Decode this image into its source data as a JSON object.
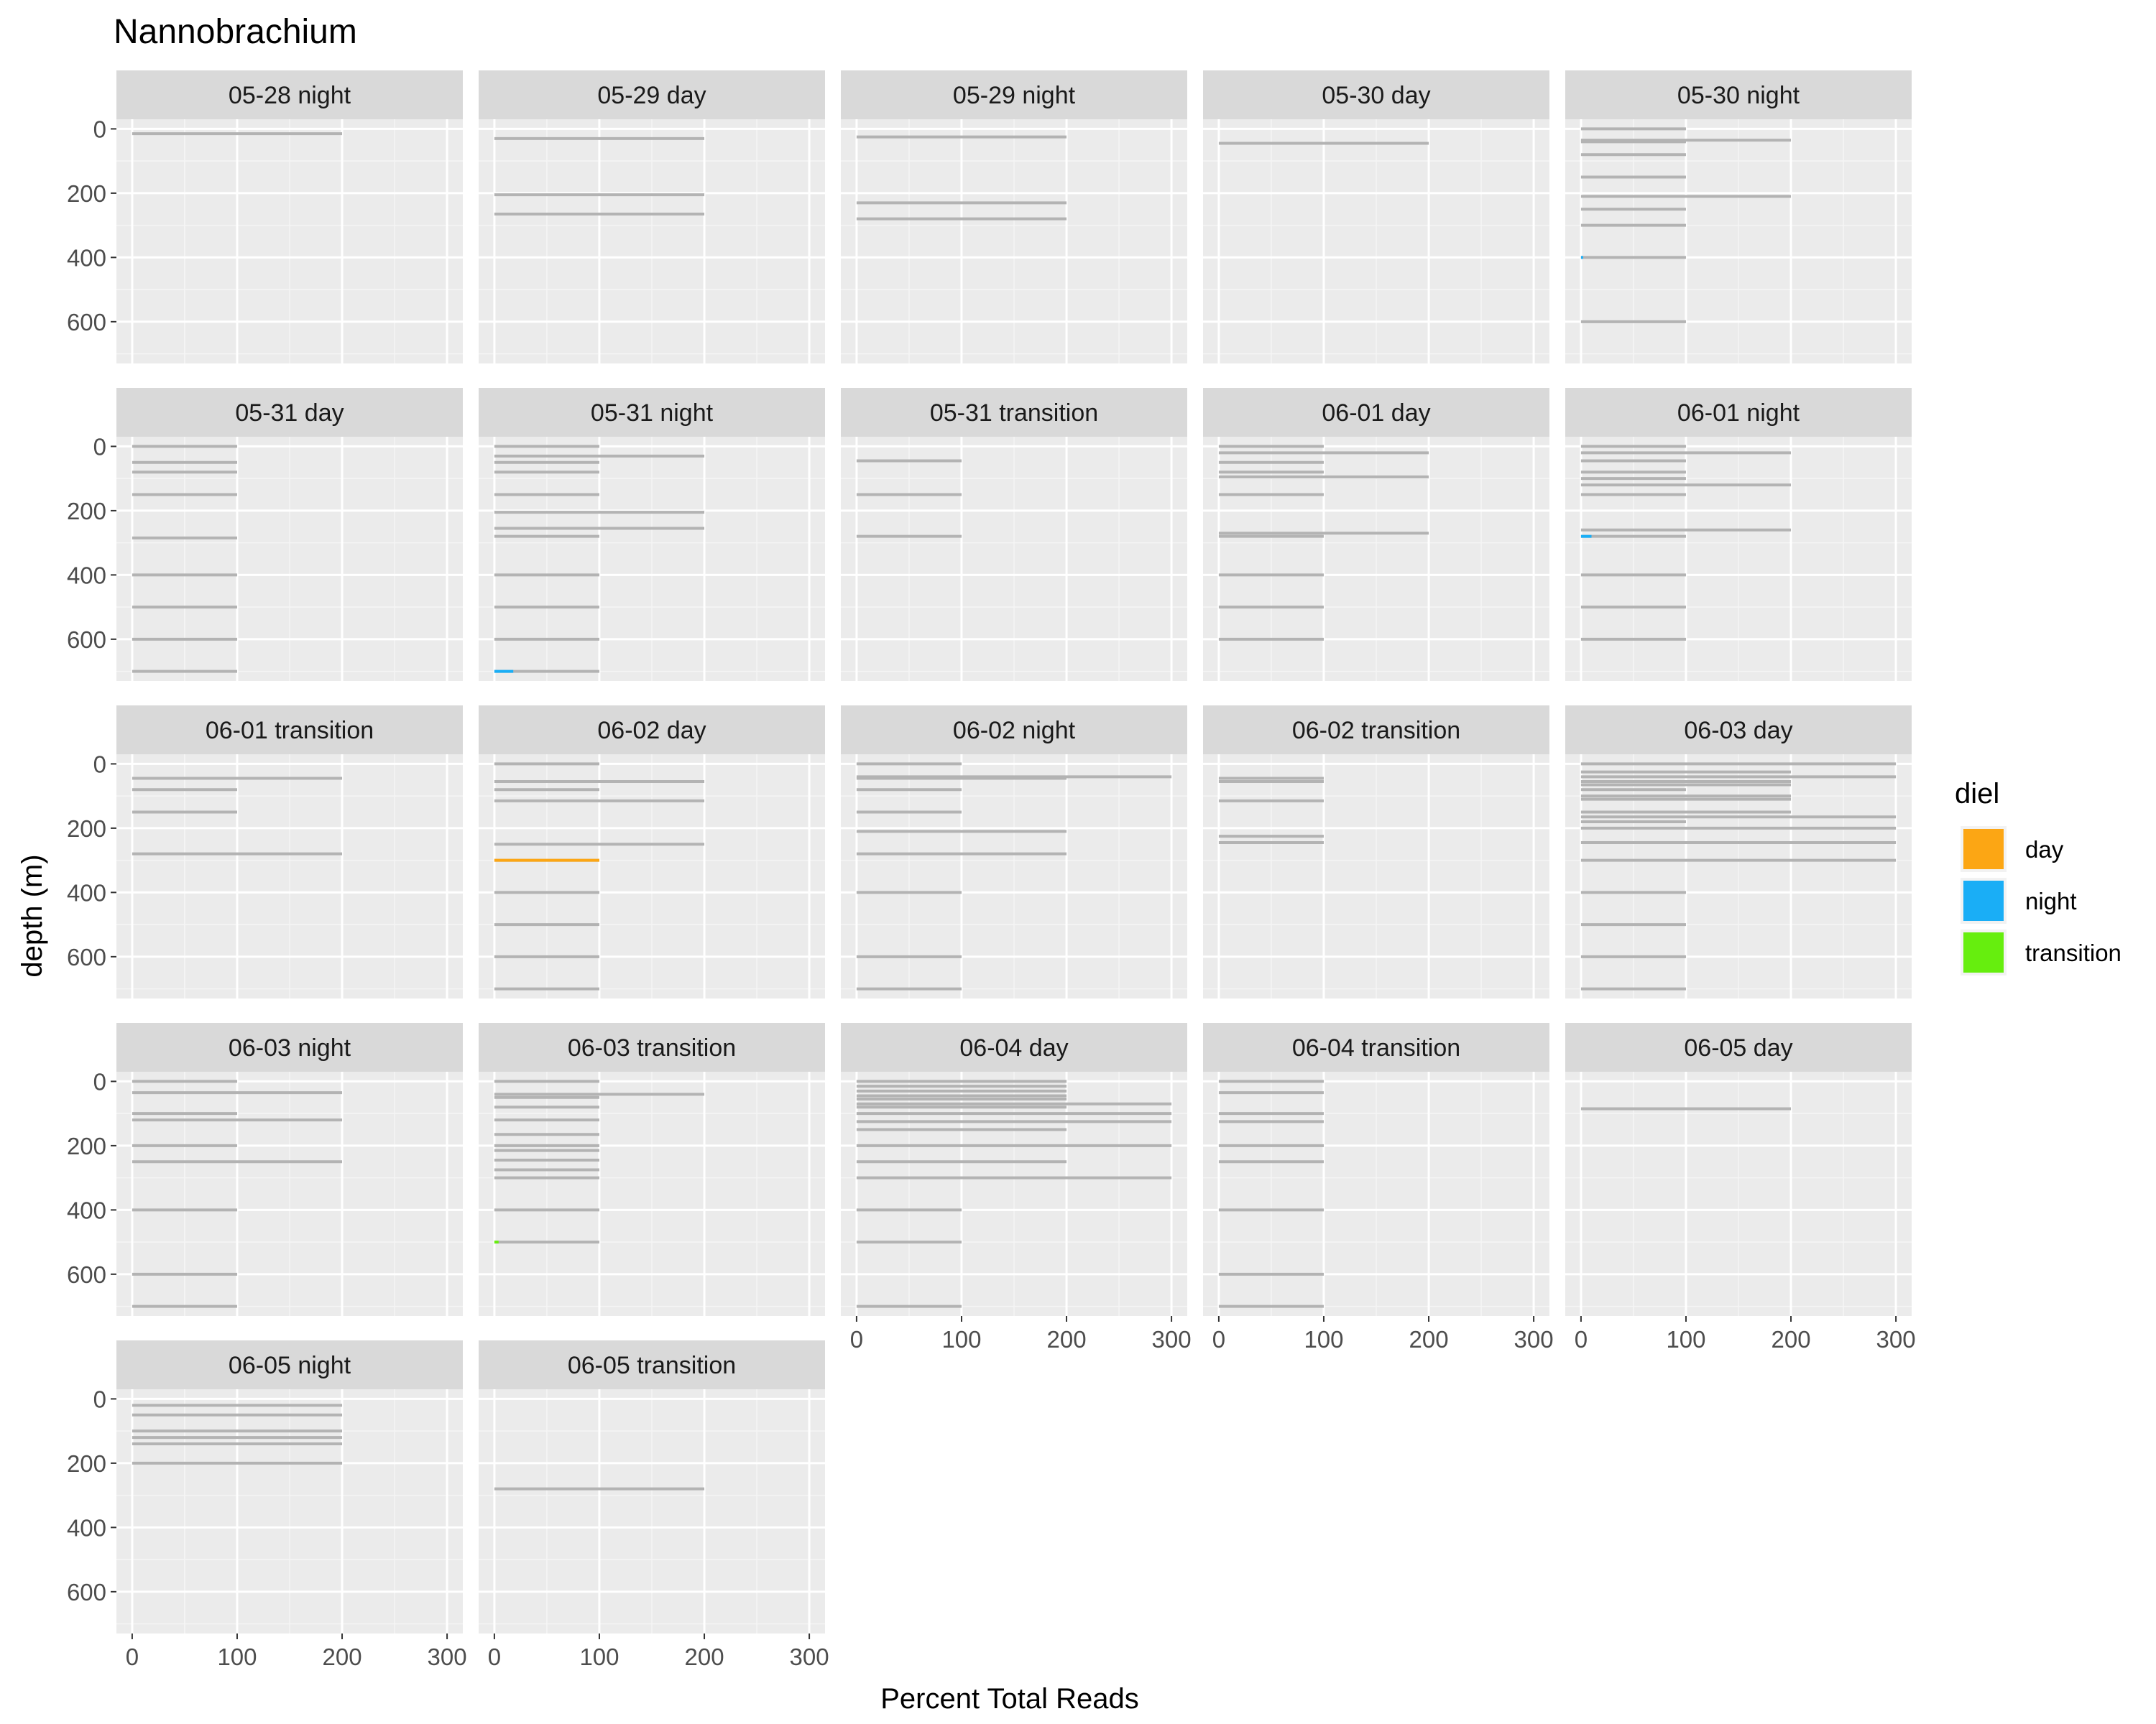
{
  "chart_data": {
    "type": "bar",
    "title": "Nannobrachium",
    "xlabel": "Percent Total Reads",
    "ylabel": "depth (m)",
    "xlim": [
      -15,
      315
    ],
    "ylim": [
      -30,
      730
    ],
    "x_ticks": [
      "0",
      "100",
      "200",
      "300"
    ],
    "y_ticks": [
      "0",
      "200",
      "400",
      "600"
    ],
    "legend": {
      "title": "diel",
      "position": "right",
      "entries": [
        {
          "label": "day",
          "color": "#FCA614"
        },
        {
          "label": "night",
          "color": "#1AAEF6"
        },
        {
          "label": "transition",
          "color": "#66EE0E"
        }
      ]
    },
    "bar_note": "Each horizontal line is a sample at a depth; total extent is 100% per sample; colored segment is the fraction of reads for Nannobrachium.",
    "background_bar_color": "#B3B3B3",
    "panels": [
      {
        "label": "05-28 night",
        "bars": [
          {
            "depth": 15,
            "total": 200
          }
        ]
      },
      {
        "label": "05-29 day",
        "bars": [
          {
            "depth": 30,
            "total": 200
          },
          {
            "depth": 205,
            "total": 200
          },
          {
            "depth": 265,
            "total": 200
          }
        ]
      },
      {
        "label": "05-29 night",
        "bars": [
          {
            "depth": 25,
            "total": 200
          },
          {
            "depth": 230,
            "total": 200
          },
          {
            "depth": 280,
            "total": 200
          }
        ]
      },
      {
        "label": "05-30 day",
        "bars": [
          {
            "depth": 45,
            "total": 200
          }
        ]
      },
      {
        "label": "05-30 night",
        "bars": [
          {
            "depth": 0,
            "total": 100
          },
          {
            "depth": 35,
            "total": 200
          },
          {
            "depth": 40,
            "total": 100
          },
          {
            "depth": 80,
            "total": 100
          },
          {
            "depth": 150,
            "total": 100
          },
          {
            "depth": 210,
            "total": 200
          },
          {
            "depth": 250,
            "total": 100
          },
          {
            "depth": 300,
            "total": 100
          },
          {
            "depth": 400,
            "total": 100,
            "value": 2,
            "color": "night"
          },
          {
            "depth": 600,
            "total": 100
          }
        ]
      },
      {
        "label": "05-31 day",
        "bars": [
          {
            "depth": 0,
            "total": 100
          },
          {
            "depth": 50,
            "total": 100
          },
          {
            "depth": 80,
            "total": 100
          },
          {
            "depth": 150,
            "total": 100
          },
          {
            "depth": 285,
            "total": 100
          },
          {
            "depth": 400,
            "total": 100
          },
          {
            "depth": 500,
            "total": 100
          },
          {
            "depth": 600,
            "total": 100
          },
          {
            "depth": 700,
            "total": 100
          }
        ]
      },
      {
        "label": "05-31 night",
        "bars": [
          {
            "depth": 0,
            "total": 100
          },
          {
            "depth": 30,
            "total": 200
          },
          {
            "depth": 50,
            "total": 100
          },
          {
            "depth": 80,
            "total": 100
          },
          {
            "depth": 150,
            "total": 100
          },
          {
            "depth": 205,
            "total": 200
          },
          {
            "depth": 255,
            "total": 200
          },
          {
            "depth": 280,
            "total": 100
          },
          {
            "depth": 400,
            "total": 100
          },
          {
            "depth": 500,
            "total": 100
          },
          {
            "depth": 600,
            "total": 100
          },
          {
            "depth": 700,
            "total": 100,
            "value": 18,
            "color": "night"
          }
        ]
      },
      {
        "label": "05-31 transition",
        "bars": [
          {
            "depth": 45,
            "total": 100
          },
          {
            "depth": 150,
            "total": 100
          },
          {
            "depth": 280,
            "total": 100
          }
        ]
      },
      {
        "label": "06-01 day",
        "bars": [
          {
            "depth": 0,
            "total": 100
          },
          {
            "depth": 20,
            "total": 200
          },
          {
            "depth": 50,
            "total": 100
          },
          {
            "depth": 95,
            "total": 200
          },
          {
            "depth": 80,
            "total": 100
          },
          {
            "depth": 150,
            "total": 100
          },
          {
            "depth": 270,
            "total": 200
          },
          {
            "depth": 280,
            "total": 100
          },
          {
            "depth": 400,
            "total": 100
          },
          {
            "depth": 500,
            "total": 100
          },
          {
            "depth": 600,
            "total": 100
          }
        ]
      },
      {
        "label": "06-01 night",
        "bars": [
          {
            "depth": 0,
            "total": 100
          },
          {
            "depth": 20,
            "total": 200
          },
          {
            "depth": 45,
            "total": 100
          },
          {
            "depth": 80,
            "total": 100
          },
          {
            "depth": 100,
            "total": 100
          },
          {
            "depth": 120,
            "total": 200
          },
          {
            "depth": 150,
            "total": 100
          },
          {
            "depth": 260,
            "total": 200
          },
          {
            "depth": 280,
            "total": 100,
            "value": 10,
            "color": "night"
          },
          {
            "depth": 400,
            "total": 100
          },
          {
            "depth": 500,
            "total": 100
          },
          {
            "depth": 600,
            "total": 100
          }
        ]
      },
      {
        "label": "06-01 transition",
        "bars": [
          {
            "depth": 45,
            "total": 200
          },
          {
            "depth": 80,
            "total": 100
          },
          {
            "depth": 150,
            "total": 100
          },
          {
            "depth": 280,
            "total": 200
          }
        ]
      },
      {
        "label": "06-02 day",
        "bars": [
          {
            "depth": 0,
            "total": 100
          },
          {
            "depth": 55,
            "total": 200
          },
          {
            "depth": 80,
            "total": 100
          },
          {
            "depth": 115,
            "total": 200
          },
          {
            "depth": 250,
            "total": 200
          },
          {
            "depth": 300,
            "total": 100,
            "value": 100,
            "color": "day"
          },
          {
            "depth": 400,
            "total": 100
          },
          {
            "depth": 500,
            "total": 100
          },
          {
            "depth": 600,
            "total": 100
          },
          {
            "depth": 700,
            "total": 100
          }
        ]
      },
      {
        "label": "06-02 night",
        "bars": [
          {
            "depth": 0,
            "total": 100
          },
          {
            "depth": 40,
            "total": 300
          },
          {
            "depth": 45,
            "total": 200
          },
          {
            "depth": 80,
            "total": 100
          },
          {
            "depth": 150,
            "total": 100
          },
          {
            "depth": 210,
            "total": 200
          },
          {
            "depth": 280,
            "total": 200
          },
          {
            "depth": 400,
            "total": 100
          },
          {
            "depth": 600,
            "total": 100
          },
          {
            "depth": 700,
            "total": 100
          }
        ]
      },
      {
        "label": "06-02 transition",
        "bars": [
          {
            "depth": 45,
            "total": 100
          },
          {
            "depth": 55,
            "total": 100
          },
          {
            "depth": 115,
            "total": 100
          },
          {
            "depth": 225,
            "total": 100
          },
          {
            "depth": 245,
            "total": 100
          }
        ]
      },
      {
        "label": "06-03 day",
        "bars": [
          {
            "depth": 0,
            "total": 300
          },
          {
            "depth": 40,
            "total": 300
          },
          {
            "depth": 25,
            "total": 200
          },
          {
            "depth": 55,
            "total": 200
          },
          {
            "depth": 65,
            "total": 200
          },
          {
            "depth": 80,
            "total": 100
          },
          {
            "depth": 100,
            "total": 200
          },
          {
            "depth": 110,
            "total": 200
          },
          {
            "depth": 150,
            "total": 200
          },
          {
            "depth": 165,
            "total": 300
          },
          {
            "depth": 180,
            "total": 100
          },
          {
            "depth": 200,
            "total": 300
          },
          {
            "depth": 245,
            "total": 300
          },
          {
            "depth": 300,
            "total": 300
          },
          {
            "depth": 400,
            "total": 100
          },
          {
            "depth": 500,
            "total": 100
          },
          {
            "depth": 600,
            "total": 100
          },
          {
            "depth": 700,
            "total": 100
          }
        ]
      },
      {
        "label": "06-03 night",
        "bars": [
          {
            "depth": 0,
            "total": 100
          },
          {
            "depth": 35,
            "total": 200
          },
          {
            "depth": 100,
            "total": 100
          },
          {
            "depth": 120,
            "total": 200
          },
          {
            "depth": 200,
            "total": 100
          },
          {
            "depth": 250,
            "total": 200
          },
          {
            "depth": 400,
            "total": 100
          },
          {
            "depth": 600,
            "total": 100
          },
          {
            "depth": 700,
            "total": 100
          }
        ]
      },
      {
        "label": "06-03 transition",
        "bars": [
          {
            "depth": 0,
            "total": 100
          },
          {
            "depth": 40,
            "total": 200
          },
          {
            "depth": 50,
            "total": 100
          },
          {
            "depth": 80,
            "total": 100
          },
          {
            "depth": 120,
            "total": 100
          },
          {
            "depth": 165,
            "total": 100
          },
          {
            "depth": 200,
            "total": 100
          },
          {
            "depth": 215,
            "total": 100
          },
          {
            "depth": 245,
            "total": 100
          },
          {
            "depth": 275,
            "total": 100
          },
          {
            "depth": 300,
            "total": 100
          },
          {
            "depth": 400,
            "total": 100
          },
          {
            "depth": 500,
            "total": 100,
            "value": 4,
            "color": "transition"
          }
        ]
      },
      {
        "label": "06-04 day",
        "bars": [
          {
            "depth": 0,
            "total": 200
          },
          {
            "depth": 15,
            "total": 200
          },
          {
            "depth": 30,
            "total": 200
          },
          {
            "depth": 45,
            "total": 200
          },
          {
            "depth": 55,
            "total": 200
          },
          {
            "depth": 70,
            "total": 300
          },
          {
            "depth": 80,
            "total": 200
          },
          {
            "depth": 100,
            "total": 300
          },
          {
            "depth": 125,
            "total": 300
          },
          {
            "depth": 150,
            "total": 200
          },
          {
            "depth": 200,
            "total": 300
          },
          {
            "depth": 250,
            "total": 200
          },
          {
            "depth": 300,
            "total": 300
          },
          {
            "depth": 400,
            "total": 100
          },
          {
            "depth": 500,
            "total": 100
          },
          {
            "depth": 700,
            "total": 100
          }
        ]
      },
      {
        "label": "06-04 transition",
        "bars": [
          {
            "depth": 0,
            "total": 100
          },
          {
            "depth": 35,
            "total": 100
          },
          {
            "depth": 100,
            "total": 100
          },
          {
            "depth": 125,
            "total": 100
          },
          {
            "depth": 200,
            "total": 100
          },
          {
            "depth": 250,
            "total": 100
          },
          {
            "depth": 400,
            "total": 100
          },
          {
            "depth": 600,
            "total": 100
          },
          {
            "depth": 700,
            "total": 100
          }
        ]
      },
      {
        "label": "06-05 day",
        "bars": [
          {
            "depth": 85,
            "total": 200
          }
        ]
      },
      {
        "label": "06-05 night",
        "bars": [
          {
            "depth": 20,
            "total": 200
          },
          {
            "depth": 50,
            "total": 200
          },
          {
            "depth": 100,
            "total": 200
          },
          {
            "depth": 120,
            "total": 200
          },
          {
            "depth": 140,
            "total": 200
          },
          {
            "depth": 200,
            "total": 200
          }
        ]
      },
      {
        "label": "06-05 transition",
        "bars": [
          {
            "depth": 280,
            "total": 200
          }
        ]
      }
    ]
  }
}
